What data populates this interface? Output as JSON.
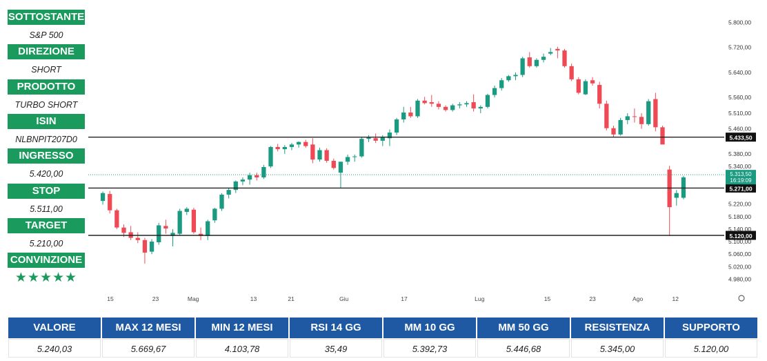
{
  "panel": {
    "items": [
      {
        "label": "SOTTOSTANTE",
        "value": "S&P 500"
      },
      {
        "label": "DIREZIONE",
        "value": "SHORT"
      },
      {
        "label": "PRODOTTO",
        "value": "TURBO SHORT"
      },
      {
        "label": "ISIN",
        "value": "NLBNPIT207D0"
      },
      {
        "label": "INGRESSO",
        "value": "5.420,00"
      },
      {
        "label": "STOP",
        "value": "5.511,00"
      },
      {
        "label": "TARGET",
        "value": "5.210,00"
      },
      {
        "label": "CONVINZIONE",
        "value": "★★★★★"
      }
    ],
    "conviction_stars": 5
  },
  "stats": {
    "headers": [
      "VALORE",
      "MAX 12 MESI",
      "MIN 12 MESI",
      "RSI 14 GG",
      "MM 10 GG",
      "MM 50 GG",
      "RESISTENZA",
      "SUPPORTO"
    ],
    "values": [
      "5.240,03",
      "5.669,67",
      "4.103,78",
      "35,49",
      "5.392,73",
      "5.446,68",
      "5.345,00",
      "5.120,00"
    ],
    "header_color": "#1f58a3"
  },
  "chart_data": {
    "type": "candlestick",
    "title": "",
    "xlabel": "",
    "ylabel": "",
    "ylim": [
      4960,
      5820
    ],
    "yticks": [
      5800,
      5720,
      5640,
      5560,
      5510,
      5460,
      5380,
      5340,
      5220,
      5180,
      5140,
      5100,
      5060,
      5020,
      4980
    ],
    "ytick_labels": [
      "5.800,00",
      "5.720,00",
      "5.640,00",
      "5.560,00",
      "5.510,00",
      "5.460,00",
      "5.380,00",
      "5.340,00",
      "5.220,00",
      "5.180,00",
      "5.140,00",
      "5.100,00",
      "5.060,00",
      "5.020,00",
      "4.980,00"
    ],
    "xticks": [
      {
        "label": "15",
        "index": 1
      },
      {
        "label": "23",
        "index": 7
      },
      {
        "label": "Mag",
        "index": 12
      },
      {
        "label": "13",
        "index": 20
      },
      {
        "label": "21",
        "index": 25
      },
      {
        "label": "Giu",
        "index": 32
      },
      {
        "label": "17",
        "index": 40
      },
      {
        "label": "Lug",
        "index": 50
      },
      {
        "label": "15",
        "index": 59
      },
      {
        "label": "23",
        "index": 65
      },
      {
        "label": "Ago",
        "index": 71
      },
      {
        "label": "12",
        "index": 76
      }
    ],
    "x_slots": 78,
    "candles": [
      [
        5230,
        5260,
        5218,
        5255
      ],
      [
        5252,
        5262,
        5190,
        5200
      ],
      [
        5200,
        5205,
        5140,
        5145
      ],
      [
        5145,
        5155,
        5115,
        5128
      ],
      [
        5130,
        5150,
        5105,
        5112
      ],
      [
        5112,
        5130,
        5095,
        5105
      ],
      [
        5105,
        5112,
        5030,
        5065
      ],
      [
        5068,
        5108,
        5060,
        5100
      ],
      [
        5098,
        5160,
        5090,
        5152
      ],
      [
        5150,
        5170,
        5125,
        5142
      ],
      [
        5118,
        5140,
        5085,
        5128
      ],
      [
        5125,
        5205,
        5120,
        5198
      ],
      [
        5195,
        5210,
        5185,
        5205
      ],
      [
        5202,
        5208,
        5125,
        5130
      ],
      [
        5125,
        5145,
        5105,
        5118
      ],
      [
        5118,
        5170,
        5105,
        5165
      ],
      [
        5168,
        5208,
        5160,
        5205
      ],
      [
        5205,
        5255,
        5198,
        5250
      ],
      [
        5250,
        5272,
        5238,
        5265
      ],
      [
        5265,
        5295,
        5255,
        5292
      ],
      [
        5292,
        5305,
        5280,
        5298
      ],
      [
        5298,
        5320,
        5282,
        5312
      ],
      [
        5312,
        5320,
        5295,
        5305
      ],
      [
        5305,
        5345,
        5300,
        5338
      ],
      [
        5340,
        5405,
        5335,
        5402
      ],
      [
        5402,
        5412,
        5388,
        5395
      ],
      [
        5395,
        5408,
        5380,
        5402
      ],
      [
        5402,
        5415,
        5392,
        5410
      ],
      [
        5410,
        5420,
        5400,
        5418
      ],
      [
        5418,
        5425,
        5400,
        5405
      ],
      [
        5410,
        5430,
        5350,
        5362
      ],
      [
        5362,
        5400,
        5355,
        5392
      ],
      [
        5392,
        5398,
        5352,
        5358
      ],
      [
        5358,
        5365,
        5330,
        5335
      ],
      [
        5320,
        5355,
        5270,
        5355
      ],
      [
        5355,
        5378,
        5345,
        5370
      ],
      [
        5370,
        5378,
        5355,
        5372
      ],
      [
        5372,
        5435,
        5368,
        5428
      ],
      [
        5428,
        5440,
        5418,
        5432
      ],
      [
        5430,
        5445,
        5415,
        5422
      ],
      [
        5422,
        5440,
        5405,
        5432
      ],
      [
        5430,
        5458,
        5405,
        5448
      ],
      [
        5448,
        5495,
        5440,
        5490
      ],
      [
        5490,
        5530,
        5480,
        5512
      ],
      [
        5512,
        5530,
        5495,
        5500
      ],
      [
        5500,
        5555,
        5495,
        5550
      ],
      [
        5550,
        5562,
        5538,
        5542
      ],
      [
        5545,
        5568,
        5530,
        5540
      ],
      [
        5540,
        5548,
        5522,
        5530
      ],
      [
        5530,
        5535,
        5515,
        5520
      ],
      [
        5520,
        5540,
        5515,
        5535
      ],
      [
        5535,
        5545,
        5525,
        5538
      ],
      [
        5538,
        5548,
        5530,
        5542
      ],
      [
        5545,
        5570,
        5515,
        5525
      ],
      [
        5525,
        5535,
        5510,
        5530
      ],
      [
        5530,
        5572,
        5525,
        5568
      ],
      [
        5568,
        5598,
        5560,
        5590
      ],
      [
        5590,
        5622,
        5582,
        5615
      ],
      [
        5615,
        5632,
        5610,
        5628
      ],
      [
        5628,
        5640,
        5615,
        5632
      ],
      [
        5632,
        5690,
        5625,
        5685
      ],
      [
        5688,
        5705,
        5655,
        5660
      ],
      [
        5660,
        5685,
        5655,
        5680
      ],
      [
        5680,
        5700,
        5672,
        5690
      ],
      [
        5700,
        5718,
        5695,
        5705
      ],
      [
        5715,
        5722,
        5685,
        5710
      ],
      [
        5710,
        5715,
        5655,
        5660
      ],
      [
        5660,
        5668,
        5612,
        5618
      ],
      [
        5618,
        5625,
        5570,
        5575
      ],
      [
        5570,
        5618,
        5568,
        5612
      ],
      [
        5615,
        5625,
        5598,
        5605
      ],
      [
        5600,
        5610,
        5525,
        5540
      ],
      [
        5540,
        5550,
        5455,
        5462
      ],
      [
        5462,
        5470,
        5435,
        5442
      ],
      [
        5442,
        5495,
        5438,
        5488
      ],
      [
        5488,
        5510,
        5475,
        5500
      ],
      [
        5500,
        5525,
        5480,
        5498
      ],
      [
        5498,
        5510,
        5460,
        5475
      ],
      [
        5475,
        5555,
        5470,
        5548
      ],
      [
        5555,
        5575,
        5452,
        5465
      ],
      [
        5465,
        5470,
        5412,
        5410
      ],
      [
        5330,
        5342,
        5118,
        5210
      ],
      [
        5240,
        5265,
        5215,
        5255
      ],
      [
        5240,
        5310,
        5235,
        5305
      ]
    ],
    "hlines": [
      {
        "value": 5433.5,
        "label": "5.433,50"
      },
      {
        "value": 5271.0,
        "label": "5.271,00"
      },
      {
        "value": 5120.0,
        "label": "5.120,00"
      }
    ],
    "last_price": {
      "value": 5313.5,
      "label": "5.313,50",
      "countdown": "16:19:09"
    },
    "colors": {
      "up": "#1a9a80",
      "down": "#ee4a55",
      "line": "#222222",
      "last": "#1a9a80"
    }
  }
}
